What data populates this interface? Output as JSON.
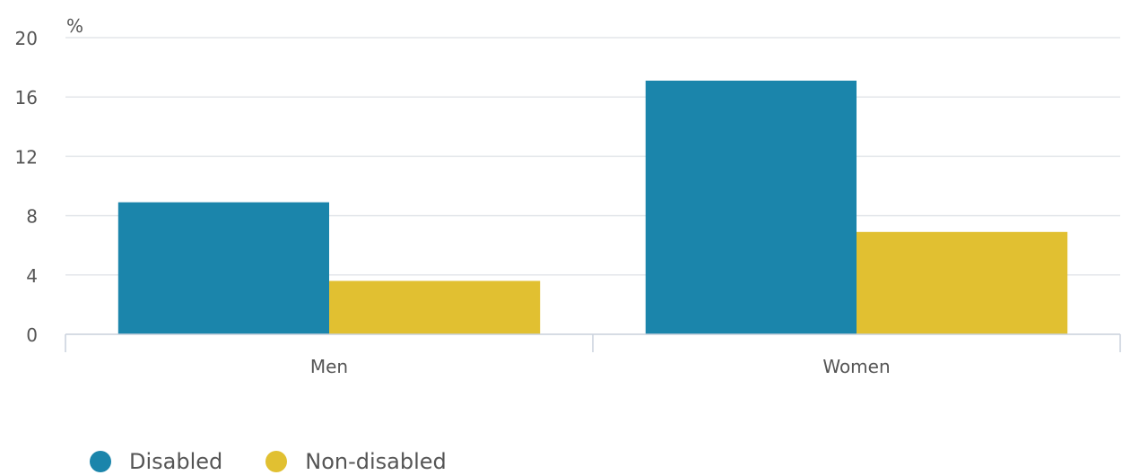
{
  "chart_data": {
    "type": "bar",
    "ylabel": "%",
    "categories": [
      "Men",
      "Women"
    ],
    "series": [
      {
        "name": "Disabled",
        "color": "#1b85ab",
        "values": [
          8.9,
          17.1
        ]
      },
      {
        "name": "Non-disabled",
        "color": "#e1c031",
        "values": [
          3.6,
          6.9
        ]
      }
    ],
    "ylim": [
      0,
      20
    ],
    "yticks": [
      0,
      4,
      8,
      12,
      16,
      20
    ],
    "grid": true,
    "legend_position": "bottom-left"
  },
  "colors": {
    "gridline": "#e3e6ea",
    "axis": "#c9d1dc",
    "tick_text": "#555555"
  }
}
